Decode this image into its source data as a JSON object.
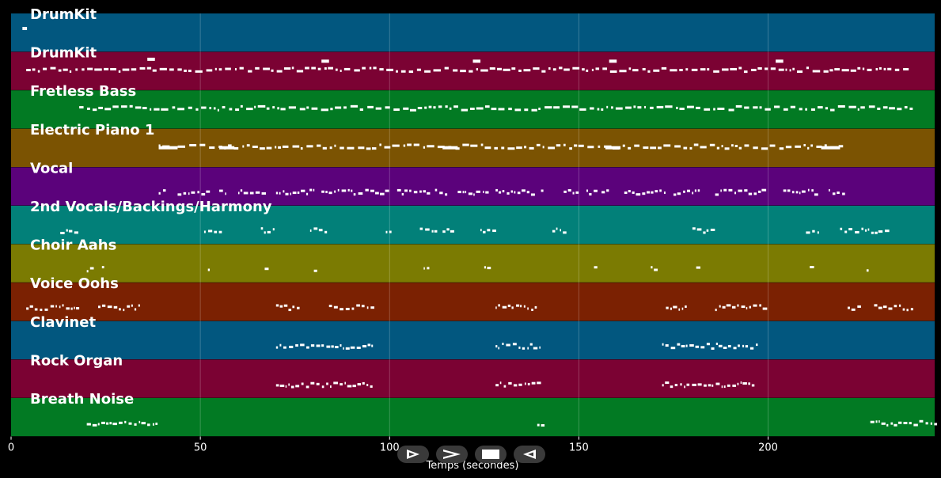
{
  "chart_data": {
    "type": "piano-roll",
    "xlabel": "Temps (secondes)",
    "xlim": [
      0,
      244
    ],
    "xticks": [
      0,
      50,
      100,
      150,
      200
    ],
    "grid": true,
    "tracks": [
      {
        "name": "DrumKit",
        "color": "#02577f",
        "notes": [
          [
            3,
            0.6,
            0.35
          ],
          [
            3.6,
            0.6,
            0.35
          ]
        ]
      },
      {
        "name": "DrumKit",
        "color": "#7b0233",
        "dense": true,
        "start": 4,
        "end": 238,
        "notes": [
          [
            36,
            2,
            0.15
          ],
          [
            82,
            2,
            0.2
          ],
          [
            122,
            2,
            0.2
          ],
          [
            158,
            2,
            0.2
          ],
          [
            202,
            2,
            0.2
          ]
        ]
      },
      {
        "name": "Fretless Bass",
        "color": "#027a23",
        "dense": true,
        "start": 18,
        "end": 238,
        "notes": []
      },
      {
        "name": "Electric Piano 1",
        "color": "#7b5302",
        "dense": true,
        "start": 39,
        "end": 220,
        "notes": [
          [
            39,
            5,
            0.45
          ],
          [
            55,
            4,
            0.45
          ],
          [
            114,
            4,
            0.45
          ],
          [
            157,
            4,
            0.45
          ],
          [
            214,
            5,
            0.45
          ]
        ]
      },
      {
        "name": "Vocal",
        "color": "#5b027b",
        "segments": [
          [
            39,
            41
          ],
          [
            44,
            52
          ],
          [
            55,
            57
          ],
          [
            60,
            68
          ],
          [
            70,
            80
          ],
          [
            82,
            99
          ],
          [
            102,
            111
          ],
          [
            112,
            115
          ],
          [
            118,
            126
          ],
          [
            128,
            138
          ],
          [
            140,
            141
          ],
          [
            146,
            150
          ],
          [
            152,
            154
          ],
          [
            156,
            158
          ],
          [
            162,
            173
          ],
          [
            175,
            182
          ],
          [
            186,
            200
          ],
          [
            204,
            213
          ],
          [
            216,
            220
          ]
        ]
      },
      {
        "name": "2nd Vocals/Backings/Harmony",
        "color": "#028079",
        "segments": [
          [
            13,
            18
          ],
          [
            51,
            55
          ],
          [
            66,
            70
          ],
          [
            79,
            83
          ],
          [
            99,
            101
          ],
          [
            108,
            112
          ],
          [
            114,
            117
          ],
          [
            124,
            128
          ],
          [
            143,
            146
          ],
          [
            180,
            185
          ],
          [
            210,
            214
          ],
          [
            219,
            232
          ]
        ]
      },
      {
        "name": "Choir Aahs",
        "color": "#7b7b02",
        "segments": [
          [
            20,
            21
          ],
          [
            24,
            25
          ],
          [
            52,
            53
          ],
          [
            67,
            68
          ],
          [
            80,
            81
          ],
          [
            109,
            110
          ],
          [
            125,
            126
          ],
          [
            154,
            155
          ],
          [
            169,
            170
          ],
          [
            181,
            182
          ],
          [
            211,
            212
          ],
          [
            226,
            227
          ]
        ]
      },
      {
        "name": "Voice Oohs",
        "color": "#7b2102",
        "segments": [
          [
            4,
            18
          ],
          [
            23,
            34
          ],
          [
            70,
            76
          ],
          [
            84,
            95
          ],
          [
            128,
            139
          ],
          [
            173,
            178
          ],
          [
            186,
            199
          ],
          [
            221,
            224
          ],
          [
            228,
            238
          ]
        ]
      },
      {
        "name": "Clavinet",
        "color": "#02577f",
        "segments": [
          [
            70,
            96
          ],
          [
            128,
            140
          ],
          [
            172,
            197
          ]
        ]
      },
      {
        "name": "Rock Organ",
        "color": "#7b0233",
        "segments": [
          [
            70,
            96
          ],
          [
            128,
            140
          ],
          [
            172,
            197
          ]
        ]
      },
      {
        "name": "Breath Noise",
        "color": "#027a23",
        "segments": [
          [
            20,
            39
          ],
          [
            139,
            141
          ],
          [
            227,
            244
          ]
        ]
      }
    ]
  },
  "controls": [
    {
      "name": "play-slow-button",
      "icon": "play-outline-icon"
    },
    {
      "name": "play-button",
      "icon": "play-chevron-icon"
    },
    {
      "name": "stop-button",
      "icon": "stop-icon"
    },
    {
      "name": "reverse-button",
      "icon": "reverse-icon"
    }
  ]
}
